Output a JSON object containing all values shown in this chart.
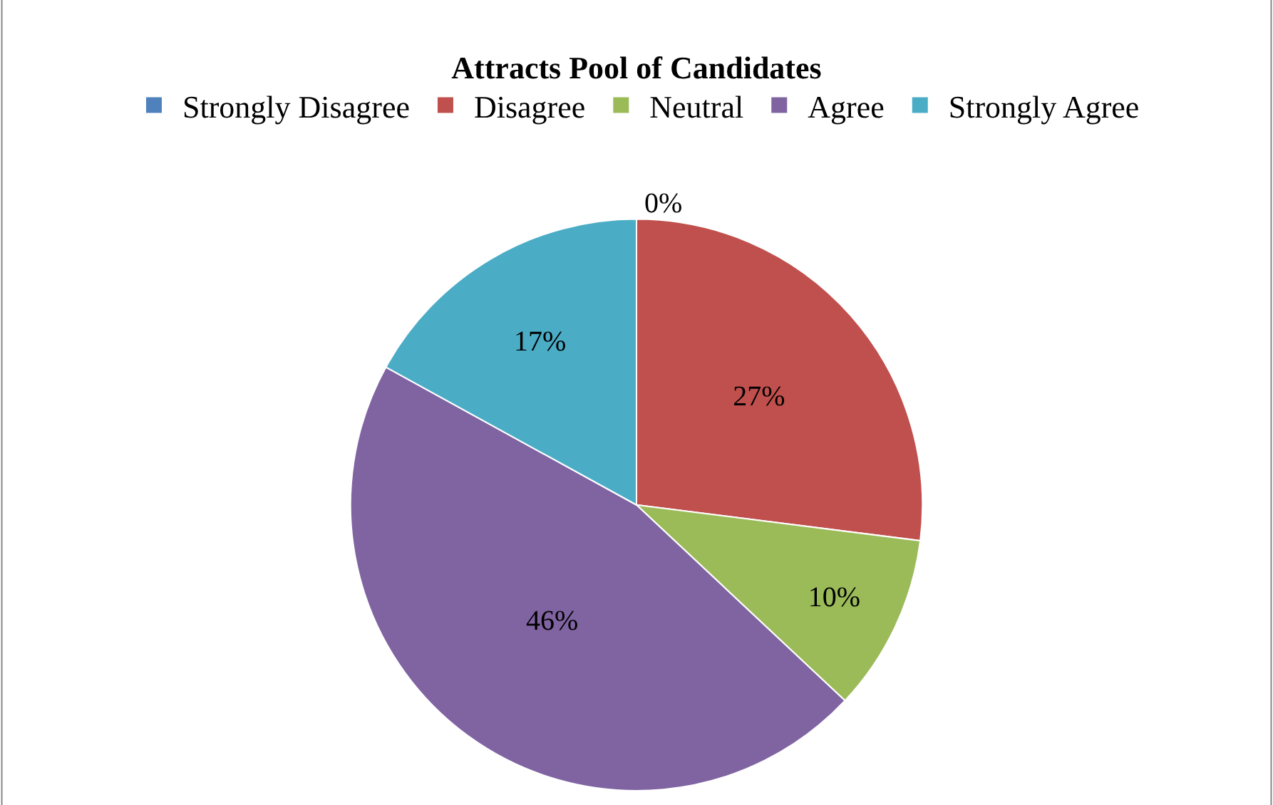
{
  "chart_data": {
    "type": "pie",
    "title": "Attracts Pool of Candidates",
    "categories": [
      "Strongly Disagree",
      "Disagree",
      "Neutral",
      "Agree",
      "Strongly Agree"
    ],
    "values": [
      0,
      27,
      10,
      46,
      17
    ],
    "value_labels": [
      "0%",
      "27%",
      "10%",
      "46%",
      "17%"
    ],
    "colors": [
      "#4f81bd",
      "#c0504d",
      "#9bbb59",
      "#8064a2",
      "#4bacc6"
    ],
    "legend": "top"
  }
}
